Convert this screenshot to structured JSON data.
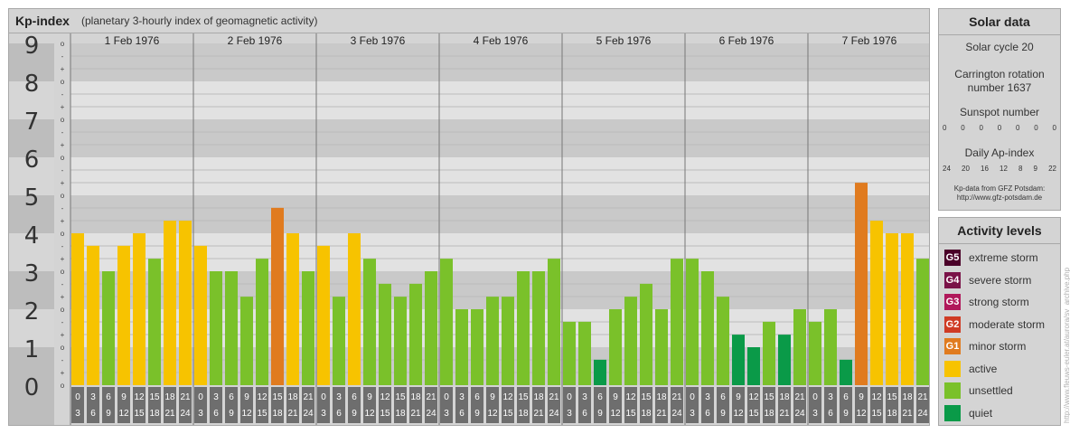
{
  "title": "Kp-index",
  "subtitle": "(planetary 3-hourly index of geomagnetic activity)",
  "chart_data": {
    "type": "bar",
    "ylim": [
      0,
      9
    ],
    "y_major_ticks": [
      "0",
      "1",
      "2",
      "3",
      "4",
      "5",
      "6",
      "7",
      "8",
      "9"
    ],
    "y_minor_ticks": [
      "+",
      "o",
      "-"
    ],
    "days": [
      "1 Feb 1976",
      "2 Feb 1976",
      "3 Feb 1976",
      "4 Feb 1976",
      "5 Feb 1976",
      "6 Feb 1976",
      "7 Feb 1976"
    ],
    "hour_labels_top": [
      "0",
      "3",
      "6",
      "9",
      "12",
      "15",
      "18",
      "21"
    ],
    "hour_labels_bottom": [
      "3",
      "6",
      "9",
      "12",
      "15",
      "18",
      "21",
      "24"
    ],
    "series": [
      {
        "values": [
          4.0,
          3.67,
          3.0,
          3.67,
          4.0,
          3.33,
          4.33,
          4.33,
          3.67,
          3.0,
          3.0,
          2.33,
          3.33,
          4.67,
          4.0,
          3.0,
          3.67,
          2.33,
          4.0,
          3.33,
          2.67,
          2.33,
          2.67,
          3.0,
          3.33,
          2.0,
          2.0,
          2.33,
          2.33,
          3.0,
          3.0,
          3.33,
          1.67,
          1.67,
          0.67,
          2.0,
          2.33,
          2.67,
          2.0,
          3.33,
          3.33,
          3.0,
          2.33,
          1.33,
          1.0,
          1.67,
          1.33,
          2.0,
          1.67,
          2.0,
          0.67,
          5.33,
          4.33,
          4.0,
          4.0,
          3.33
        ]
      }
    ]
  },
  "colors": {
    "quiet": "#0a9a48",
    "unsettled": "#7ac12a",
    "active": "#f7c300",
    "minor": "#e07b1f",
    "moderate": "#cf3b24",
    "strong": "#b0185a",
    "severe": "#7a1248",
    "extreme": "#4a0028"
  },
  "solar": {
    "title": "Solar data",
    "cycle": "Solar cycle 20",
    "carrington_line1": "Carrington rotation",
    "carrington_line2": "number 1637",
    "sunspot_label": "Sunspot number",
    "sunspot_values": [
      "0",
      "0",
      "0",
      "0",
      "0",
      "0",
      "0"
    ],
    "ap_label": "Daily Ap-index",
    "ap_values": [
      "24",
      "20",
      "16",
      "12",
      "8",
      "9",
      "22"
    ],
    "source_line1": "Kp-data from GFZ Potsdam:",
    "source_line2": "http://www.gfz-potsdam.de"
  },
  "activity": {
    "title": "Activity levels",
    "levels": [
      {
        "code": "G5",
        "label": "extreme storm",
        "color": "#4a0028"
      },
      {
        "code": "G4",
        "label": "severe storm",
        "color": "#7a1248"
      },
      {
        "code": "G3",
        "label": "strong storm",
        "color": "#b0185a"
      },
      {
        "code": "G2",
        "label": "moderate storm",
        "color": "#cf3b24"
      },
      {
        "code": "G1",
        "label": "minor storm",
        "color": "#e07b1f"
      },
      {
        "code": "",
        "label": "active",
        "color": "#f7c300"
      },
      {
        "code": "",
        "label": "unsettled",
        "color": "#7ac12a"
      },
      {
        "code": "",
        "label": "quiet",
        "color": "#0a9a48"
      }
    ]
  },
  "credit": "http://www.fleuws-euler.at/aurora/sv_archive.php"
}
